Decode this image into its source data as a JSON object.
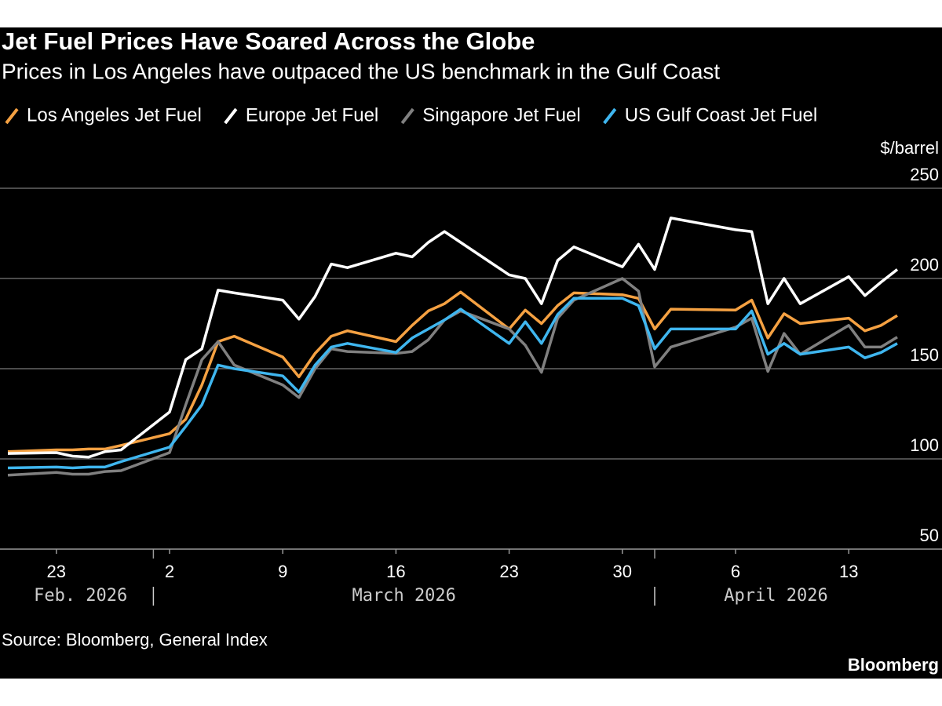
{
  "chart_data": {
    "type": "line",
    "title": "Jet Fuel Prices Have Soared Across the Globe",
    "subtitle": "Prices in Los Angeles have outpaced the US benchmark in the Gulf Coast",
    "y_axis_label": "$/barrel",
    "source": "Source: Bloomberg, General Index",
    "brand": "Bloomberg",
    "x": [
      "2026-02-20",
      "2026-02-23",
      "2026-02-24",
      "2026-02-25",
      "2026-02-26",
      "2026-02-27",
      "2026-03-02",
      "2026-03-03",
      "2026-03-04",
      "2026-03-05",
      "2026-03-06",
      "2026-03-09",
      "2026-03-10",
      "2026-03-11",
      "2026-03-12",
      "2026-03-13",
      "2026-03-16",
      "2026-03-17",
      "2026-03-18",
      "2026-03-19",
      "2026-03-20",
      "2026-03-23",
      "2026-03-24",
      "2026-03-25",
      "2026-03-26",
      "2026-03-27",
      "2026-03-30",
      "2026-03-31",
      "2026-04-01",
      "2026-04-02",
      "2026-04-06",
      "2026-04-07",
      "2026-04-08",
      "2026-04-09",
      "2026-04-10",
      "2026-04-13",
      "2026-04-14",
      "2026-04-15",
      "2026-04-16"
    ],
    "series": [
      {
        "name": "Los Angeles Jet Fuel",
        "color": "#f5a142",
        "values": [
          104,
          105,
          105,
          105.5,
          105.5,
          107.5,
          114,
          122,
          141,
          165,
          168,
          156.5,
          145.5,
          158.5,
          168,
          171,
          165,
          174,
          182,
          186,
          192.5,
          172,
          182.5,
          175,
          185,
          192,
          191,
          189,
          172,
          183,
          182.5,
          188,
          167,
          180.5,
          175,
          178,
          171,
          174,
          179.5
        ]
      },
      {
        "name": "Europe Jet Fuel",
        "color": "#ffffff",
        "values": [
          103,
          103.5,
          101.5,
          101,
          104,
          105,
          126,
          155,
          161,
          193.5,
          192,
          188,
          177.5,
          190,
          208,
          206,
          214,
          212,
          220,
          226,
          220,
          202,
          200,
          186,
          210,
          217.5,
          206.5,
          219,
          205,
          233.5,
          227,
          226,
          186,
          200,
          186,
          201,
          190.5,
          198,
          205
        ]
      },
      {
        "name": "Singapore Jet Fuel",
        "color": "#808080",
        "values": [
          91,
          92.5,
          91.5,
          91.5,
          93,
          93.5,
          103.5,
          130,
          155,
          165,
          152,
          141,
          134,
          150,
          161,
          159.5,
          158.5,
          159.5,
          166,
          177,
          182,
          172,
          163,
          148,
          178,
          188,
          200,
          193,
          151,
          162,
          173,
          178,
          148.5,
          169.5,
          158,
          174,
          162,
          162,
          167.5
        ]
      },
      {
        "name": "US Gulf Coast Jet Fuel",
        "color": "#3fb6ef",
        "values": [
          95,
          95.5,
          95,
          95.5,
          95.5,
          98.5,
          106.5,
          118,
          130,
          152,
          150,
          146,
          137,
          152,
          162,
          164,
          159,
          167,
          172,
          177,
          183,
          164,
          176,
          164,
          180,
          189,
          189,
          185,
          161,
          172,
          172,
          182,
          158,
          164,
          158,
          162,
          156,
          159,
          164
        ]
      }
    ],
    "xlim": [
      "2026-02-20",
      "2026-04-16"
    ],
    "xticks": [
      {
        "value": "2026-02-23",
        "label": "23"
      },
      {
        "value": "2026-03-02",
        "label": "2"
      },
      {
        "value": "2026-03-09",
        "label": "9"
      },
      {
        "value": "2026-03-16",
        "label": "16"
      },
      {
        "value": "2026-03-23",
        "label": "23"
      },
      {
        "value": "2026-03-30",
        "label": "30"
      },
      {
        "value": "2026-04-06",
        "label": "6"
      },
      {
        "value": "2026-04-13",
        "label": "13"
      }
    ],
    "x_groups": [
      {
        "value": "2026-02",
        "label": "Feb. 2026"
      },
      {
        "value": "2026-03",
        "label": "March 2026"
      },
      {
        "value": "2026-04",
        "label": "April 2026"
      }
    ],
    "ylim": [
      50,
      250
    ],
    "yticks": [
      50,
      100,
      150,
      200,
      250
    ],
    "grid": true
  }
}
